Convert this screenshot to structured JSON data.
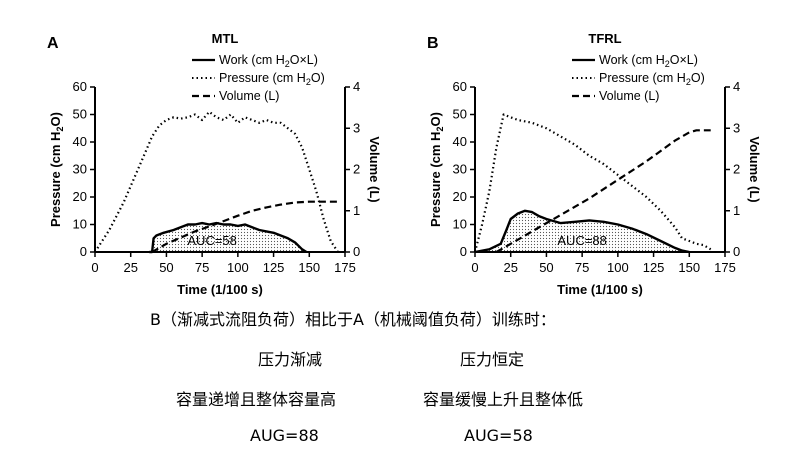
{
  "chart_data": [
    {
      "panel_letter": "A",
      "title": "MTL",
      "type": "line",
      "xlabel": "Time (1/100 s)",
      "ylabel_left": "Pressure (cm H2O)",
      "ylabel_right": "Volume (L)",
      "xlim": [
        0,
        175
      ],
      "ylim_left": [
        0,
        60
      ],
      "ylim_right": [
        0,
        4
      ],
      "x_ticks": [
        "0",
        "25",
        "50",
        "75",
        "100",
        "125",
        "150",
        "175"
      ],
      "y_left_ticks": [
        "0",
        "10",
        "20",
        "30",
        "40",
        "50",
        "60"
      ],
      "y_right_ticks": [
        "0",
        "1",
        "2",
        "3",
        "4"
      ],
      "legend": [
        "Work (cm H2O×L)",
        "Pressure (cm H2O)",
        "Volume (L)"
      ],
      "annotation": "AUC=58",
      "series": [
        {
          "name": "Pressure (cm H2O)",
          "style": "dotted",
          "axis": "left",
          "x": [
            0,
            10,
            20,
            30,
            40,
            45,
            50,
            55,
            60,
            65,
            70,
            75,
            80,
            85,
            90,
            95,
            100,
            105,
            110,
            115,
            120,
            125,
            130,
            135,
            140,
            145,
            150,
            155,
            160,
            165,
            170
          ],
          "y": [
            0,
            8,
            18,
            30,
            42,
            46,
            48,
            49,
            48.5,
            49,
            50,
            48,
            51,
            49,
            48,
            50,
            47,
            49,
            48,
            47,
            48,
            47,
            47,
            45,
            43,
            38,
            30,
            22,
            12,
            4,
            0
          ]
        },
        {
          "name": "Volume (L)",
          "style": "dashed",
          "axis": "right",
          "x": [
            40,
            50,
            60,
            70,
            80,
            90,
            100,
            110,
            120,
            130,
            140,
            150,
            160,
            170
          ],
          "y": [
            0,
            0.2,
            0.35,
            0.5,
            0.62,
            0.75,
            0.88,
            1.0,
            1.08,
            1.15,
            1.2,
            1.22,
            1.22,
            1.22
          ]
        },
        {
          "name": "Work (cm H2O×L)",
          "style": "solid",
          "axis": "left",
          "fill": "dotted",
          "x": [
            38,
            40,
            41,
            43,
            48,
            55,
            60,
            65,
            70,
            75,
            80,
            85,
            90,
            95,
            100,
            105,
            110,
            115,
            120,
            125,
            130,
            135,
            140,
            145,
            148
          ],
          "y": [
            0,
            0,
            5,
            6,
            7,
            8,
            9,
            10,
            10,
            10.5,
            10,
            10.5,
            10,
            10,
            9.5,
            10,
            9,
            8,
            7.5,
            7,
            6,
            5,
            3.5,
            1,
            0
          ]
        }
      ]
    },
    {
      "panel_letter": "B",
      "title": "TFRL",
      "type": "line",
      "xlabel": "Time (1/100 s)",
      "ylabel_left": "Pressure (cm H2O)",
      "ylabel_right": "Volume (L)",
      "xlim": [
        0,
        175
      ],
      "ylim_left": [
        0,
        60
      ],
      "ylim_right": [
        0,
        4
      ],
      "x_ticks": [
        "0",
        "25",
        "50",
        "75",
        "100",
        "125",
        "150",
        "175"
      ],
      "y_left_ticks": [
        "0",
        "10",
        "20",
        "30",
        "40",
        "50",
        "60"
      ],
      "y_right_ticks": [
        "0",
        "1",
        "2",
        "3",
        "4"
      ],
      "legend": [
        "Work (cm H2O×L)",
        "Pressure (cm H2O)",
        "Volume (L)"
      ],
      "annotation": "AUC=88",
      "series": [
        {
          "name": "Pressure (cm H2O)",
          "style": "dotted",
          "axis": "left",
          "x": [
            0,
            5,
            10,
            15,
            20,
            25,
            30,
            40,
            50,
            60,
            70,
            80,
            90,
            100,
            110,
            120,
            130,
            140,
            145,
            150,
            155,
            160,
            165
          ],
          "y": [
            0,
            10,
            22,
            38,
            50,
            49,
            48,
            47,
            45,
            42,
            39,
            35,
            32,
            28,
            24,
            20,
            15,
            9,
            5,
            4,
            3,
            2.5,
            1
          ]
        },
        {
          "name": "Volume (L)",
          "style": "dashed",
          "axis": "right",
          "x": [
            15,
            25,
            40,
            60,
            80,
            100,
            120,
            140,
            150,
            155,
            160,
            165
          ],
          "y": [
            0,
            0.2,
            0.5,
            0.9,
            1.3,
            1.75,
            2.2,
            2.7,
            2.9,
            2.95,
            2.95,
            2.95
          ]
        },
        {
          "name": "Work (cm H2O×L)",
          "style": "solid",
          "axis": "left",
          "fill": "dotted",
          "x": [
            0,
            10,
            18,
            22,
            25,
            30,
            35,
            40,
            45,
            50,
            60,
            70,
            80,
            90,
            100,
            110,
            120,
            130,
            140,
            145,
            150
          ],
          "y": [
            0,
            1,
            3,
            8,
            12,
            14,
            15,
            14.5,
            13,
            12,
            10.5,
            11,
            11.5,
            11,
            10,
            8.5,
            6.5,
            4,
            1.5,
            0.5,
            0
          ]
        }
      ]
    }
  ],
  "summary": {
    "heading": "B（渐减式流阻负荷）相比于A（机械阈值负荷）训练时：",
    "row1_left": "压力渐减",
    "row1_right": "压力恒定",
    "row2_left": "容量递增且整体容量高",
    "row2_right": "容量缓慢上升且整体低",
    "row3_left": "AUG=88",
    "row3_right": "AUG=58"
  }
}
